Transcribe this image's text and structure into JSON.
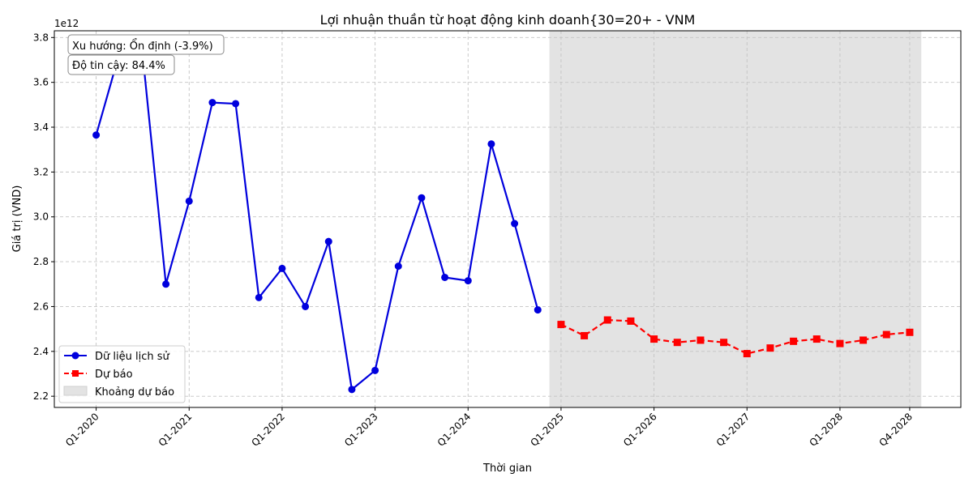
{
  "chart_data": {
    "type": "line",
    "title": "Lợi nhuận thuần từ hoạt động kinh doanh{30=20+ - VNM",
    "xlabel": "Thời gian",
    "ylabel": "Giá trị (VND)",
    "y_scale_label": "1e12",
    "ylim": [
      2.15,
      3.83
    ],
    "y_ticks": [
      2.2,
      2.4,
      2.6,
      2.8,
      3.0,
      3.2,
      3.4,
      3.6,
      3.8
    ],
    "y_tick_labels": [
      "2.2",
      "2.4",
      "2.6",
      "2.8",
      "3.0",
      "3.2",
      "3.4",
      "3.6",
      "3.8"
    ],
    "x_ticks": [
      {
        "label": "Q1-2020",
        "x": 0
      },
      {
        "label": "Q1-2021",
        "x": 4
      },
      {
        "label": "Q1-2022",
        "x": 8
      },
      {
        "label": "Q1-2023",
        "x": 12
      },
      {
        "label": "Q1-2024",
        "x": 16
      },
      {
        "label": "Q1-2025",
        "x": 20
      },
      {
        "label": "Q1-2026",
        "x": 24
      },
      {
        "label": "Q1-2027",
        "x": 28
      },
      {
        "label": "Q1-2028",
        "x": 32
      },
      {
        "label": "Q4-2028",
        "x": 35
      }
    ],
    "grid": true,
    "legend_position": "lower-left",
    "forecast_region": {
      "name": "Khoảng dự báo",
      "x_start": 19.5,
      "x_end": 35.5,
      "color": "#e3e3e3"
    },
    "series": [
      {
        "name": "Dữ liệu lịch sử",
        "color": "#0000dd",
        "style": "solid",
        "marker": "circle",
        "x": [
          0,
          1,
          2,
          3,
          4,
          5,
          6,
          7,
          8,
          9,
          10,
          11,
          12,
          13,
          14,
          15,
          16,
          17,
          18,
          19
        ],
        "values": [
          3.365,
          3.73,
          3.725,
          2.7,
          3.07,
          3.51,
          3.505,
          2.64,
          2.77,
          2.6,
          2.89,
          2.23,
          2.315,
          2.78,
          3.085,
          2.73,
          2.715,
          3.325,
          2.97,
          2.585
        ]
      },
      {
        "name": "Dự báo",
        "color": "#ff0000",
        "style": "dashed",
        "marker": "square",
        "x": [
          20,
          21,
          22,
          23,
          24,
          25,
          26,
          27,
          28,
          29,
          30,
          31,
          32,
          33,
          34,
          35
        ],
        "values": [
          2.52,
          2.47,
          2.54,
          2.535,
          2.455,
          2.44,
          2.45,
          2.44,
          2.39,
          2.415,
          2.445,
          2.455,
          2.435,
          2.45,
          2.475,
          2.485
        ]
      }
    ],
    "annotations": [
      "Xu hướng: Ổn định (-3.9%)",
      "Độ tin cậy: 84.4%"
    ]
  }
}
